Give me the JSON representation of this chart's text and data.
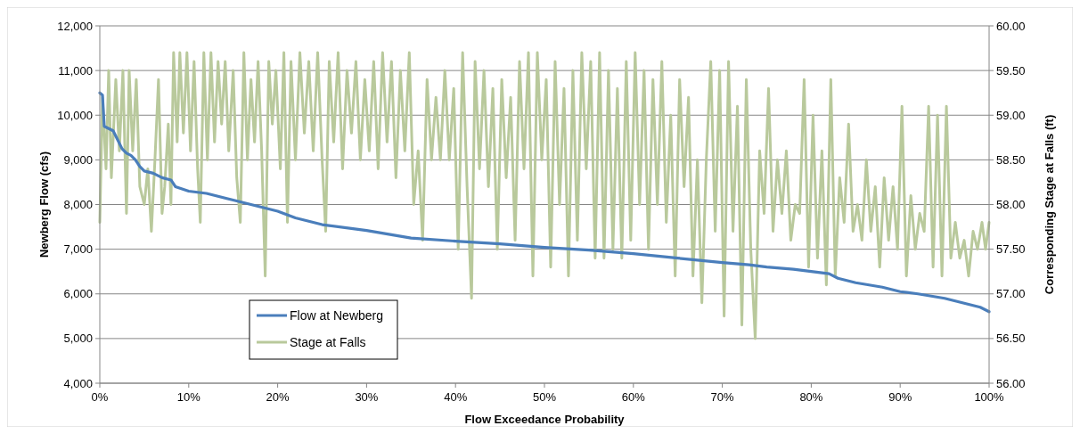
{
  "chart_data": {
    "type": "line",
    "xlabel": "Flow Exceedance Probability",
    "ylabel": "Newberg Flow (cfs)",
    "y2label": "Corresponding Stage at Falls (ft)",
    "xlim": [
      0,
      100
    ],
    "xticks": [
      {
        "value": 0,
        "label": "0%"
      },
      {
        "value": 10,
        "label": "10%"
      },
      {
        "value": 20,
        "label": "20%"
      },
      {
        "value": 30,
        "label": "30%"
      },
      {
        "value": 40,
        "label": "40%"
      },
      {
        "value": 50,
        "label": "50%"
      },
      {
        "value": 60,
        "label": "60%"
      },
      {
        "value": 70,
        "label": "70%"
      },
      {
        "value": 80,
        "label": "80%"
      },
      {
        "value": 90,
        "label": "90%"
      },
      {
        "value": 100,
        "label": "100%"
      }
    ],
    "ylim": [
      4000,
      12000
    ],
    "yticks": [
      {
        "value": 4000,
        "label": "4,000"
      },
      {
        "value": 5000,
        "label": "5,000"
      },
      {
        "value": 6000,
        "label": "6,000"
      },
      {
        "value": 7000,
        "label": "7,000"
      },
      {
        "value": 8000,
        "label": "8,000"
      },
      {
        "value": 9000,
        "label": "9,000"
      },
      {
        "value": 10000,
        "label": "10,000"
      },
      {
        "value": 11000,
        "label": "11,000"
      },
      {
        "value": 12000,
        "label": "12,000"
      }
    ],
    "y2lim": [
      56,
      60
    ],
    "y2ticks": [
      {
        "value": 56,
        "label": "56.00"
      },
      {
        "value": 56.5,
        "label": "56.50"
      },
      {
        "value": 57,
        "label": "57.00"
      },
      {
        "value": 57.5,
        "label": "57.50"
      },
      {
        "value": 58,
        "label": "58.00"
      },
      {
        "value": 58.5,
        "label": "58.50"
      },
      {
        "value": 59,
        "label": "59.00"
      },
      {
        "value": 59.5,
        "label": "59.50"
      },
      {
        "value": 60,
        "label": "60.00"
      }
    ],
    "grid": "y",
    "legend": "bottom left",
    "line_style": "solid",
    "series": [
      {
        "name": "Flow at Newberg",
        "color": "#4a7ebb",
        "x": [
          0,
          0.3,
          0.5,
          1,
          1.5,
          2,
          2.5,
          3,
          3.5,
          4,
          4.5,
          5,
          6,
          7,
          8,
          8.5,
          10,
          12,
          15,
          18,
          20,
          22,
          25,
          30,
          35,
          40,
          45,
          50,
          55,
          60,
          65,
          70,
          73,
          75,
          78,
          80,
          82,
          83,
          85,
          88,
          90,
          92,
          95,
          97,
          99,
          100
        ],
        "values": [
          10500,
          10450,
          9750,
          9700,
          9650,
          9450,
          9250,
          9150,
          9100,
          9000,
          8850,
          8750,
          8700,
          8600,
          8550,
          8400,
          8300,
          8250,
          8100,
          7950,
          7850,
          7700,
          7550,
          7420,
          7250,
          7180,
          7120,
          7040,
          6980,
          6900,
          6800,
          6700,
          6650,
          6600,
          6550,
          6500,
          6450,
          6350,
          6250,
          6150,
          6050,
          6000,
          5900,
          5800,
          5700,
          5600
        ]
      },
      {
        "name": "Stage at Falls",
        "color": "#b9c99c",
        "axis": "y2",
        "x": [
          0,
          0.3,
          0.7,
          1.0,
          1.3,
          1.8,
          2.2,
          2.6,
          3.0,
          3.3,
          3.7,
          4.1,
          4.5,
          5.0,
          5.4,
          5.8,
          6.2,
          6.6,
          7.0,
          7.3,
          7.7,
          8.0,
          8.3,
          8.7,
          9.0,
          9.4,
          9.8,
          10.2,
          10.6,
          11.0,
          11.3,
          11.7,
          12.1,
          12.5,
          12.9,
          13.3,
          13.7,
          14.1,
          14.5,
          15.0,
          15.4,
          15.8,
          16.2,
          16.6,
          17.0,
          17.4,
          17.8,
          18.2,
          18.6,
          19.0,
          19.4,
          19.8,
          20.3,
          20.7,
          21.1,
          21.5,
          22.0,
          22.5,
          23.0,
          23.5,
          24.0,
          24.5,
          25.0,
          25.4,
          25.8,
          26.3,
          26.8,
          27.3,
          27.8,
          28.3,
          28.8,
          29.3,
          29.8,
          30.3,
          30.8,
          31.3,
          31.8,
          32.3,
          32.8,
          33.3,
          33.8,
          34.3,
          34.8,
          35.3,
          35.8,
          36.3,
          36.8,
          37.3,
          37.8,
          38.3,
          38.8,
          39.3,
          39.8,
          40.3,
          40.8,
          41.3,
          41.8,
          42.2,
          42.7,
          43.2,
          43.7,
          44.2,
          44.7,
          45.2,
          45.7,
          46.2,
          46.7,
          47.2,
          47.7,
          48.2,
          48.7,
          49.2,
          49.7,
          50.2,
          50.7,
          51.2,
          51.7,
          52.2,
          52.7,
          53.2,
          53.7,
          54.2,
          54.7,
          55.2,
          55.7,
          56.2,
          56.7,
          57.2,
          57.7,
          58.2,
          58.7,
          59.2,
          59.7,
          60.2,
          60.7,
          61.2,
          61.7,
          62.2,
          62.7,
          63.2,
          63.7,
          64.2,
          64.7,
          65.2,
          65.7,
          66.2,
          66.7,
          67.2,
          67.7,
          68.2,
          68.7,
          69.2,
          69.7,
          70.2,
          70.7,
          71.2,
          71.7,
          72.2,
          72.7,
          73.2,
          73.7,
          74.2,
          74.7,
          75.2,
          75.7,
          76.2,
          76.7,
          77.2,
          77.7,
          78.2,
          78.7,
          79.2,
          79.7,
          80.2,
          80.7,
          81.2,
          81.7,
          82.2,
          82.7,
          83.2,
          83.7,
          84.2,
          84.7,
          85.2,
          85.7,
          86.2,
          86.7,
          87.2,
          87.7,
          88.2,
          88.7,
          89.2,
          89.7,
          90.2,
          90.7,
          91.2,
          91.7,
          92.2,
          92.7,
          93.2,
          93.7,
          94.2,
          94.7,
          95.2,
          95.7,
          96.2,
          96.7,
          97.2,
          97.7,
          98.2,
          98.7,
          99.2,
          99.6,
          100
        ],
        "values": [
          57.8,
          59.2,
          58.4,
          59.5,
          58.3,
          59.4,
          58.6,
          59.5,
          57.9,
          59.5,
          58.6,
          59.4,
          58.2,
          58.0,
          58.4,
          57.7,
          58.5,
          59.4,
          57.9,
          58.2,
          58.9,
          58.0,
          59.7,
          58.7,
          59.7,
          58.8,
          59.7,
          58.6,
          59.6,
          58.4,
          57.8,
          59.7,
          58.5,
          59.7,
          58.7,
          59.6,
          58.9,
          59.6,
          58.6,
          59.5,
          58.3,
          57.8,
          59.7,
          58.5,
          59.4,
          58.7,
          59.6,
          58.6,
          57.2,
          59.6,
          58.9,
          59.5,
          58.4,
          59.7,
          57.8,
          59.6,
          58.5,
          59.7,
          58.8,
          59.6,
          58.6,
          59.7,
          58.5,
          57.7,
          59.6,
          58.7,
          59.7,
          58.4,
          59.5,
          58.8,
          59.6,
          58.5,
          59.4,
          58.6,
          59.6,
          58.4,
          59.7,
          58.7,
          59.6,
          58.3,
          59.5,
          58.6,
          59.7,
          58.0,
          58.6,
          57.6,
          59.4,
          58.5,
          59.2,
          58.5,
          59.5,
          58.5,
          59.3,
          57.5,
          59.7,
          58.2,
          56.95,
          59.6,
          58.4,
          59.5,
          58.2,
          59.3,
          57.5,
          59.4,
          58.3,
          59.2,
          57.6,
          59.6,
          58.4,
          59.7,
          57.2,
          59.7,
          58.5,
          59.4,
          57.3,
          59.6,
          58.0,
          59.3,
          57.2,
          59.5,
          57.6,
          59.7,
          58.4,
          59.6,
          57.4,
          59.7,
          57.4,
          59.5,
          57.5,
          59.3,
          57.4,
          59.6,
          57.6,
          59.7,
          58.0,
          59.5,
          57.5,
          59.4,
          58.0,
          59.6,
          57.8,
          59.0,
          57.2,
          59.4,
          58.2,
          59.2,
          57.2,
          58.5,
          56.9,
          58.5,
          59.6,
          57.7,
          59.5,
          56.75,
          59.6,
          57.7,
          59.1,
          56.65,
          59.4,
          57.5,
          56.5,
          58.6,
          57.9,
          59.3,
          57.7,
          58.5,
          57.9,
          58.6,
          57.6,
          58.0,
          57.9,
          59.4,
          57.3,
          59.0,
          57.4,
          58.6,
          57.1,
          59.4,
          57.2,
          58.3,
          57.8,
          58.9,
          57.7,
          58.0,
          57.6,
          58.5,
          57.7,
          58.2,
          57.3,
          58.3,
          57.6,
          58.2,
          57.5,
          59.1,
          57.2,
          58.1,
          57.5,
          57.9,
          57.7,
          59.1,
          57.3,
          59.0,
          57.2,
          59.1,
          57.4,
          57.8,
          57.4,
          57.6,
          57.2,
          57.7,
          57.5,
          57.8,
          57.5,
          57.8
        ]
      }
    ]
  }
}
